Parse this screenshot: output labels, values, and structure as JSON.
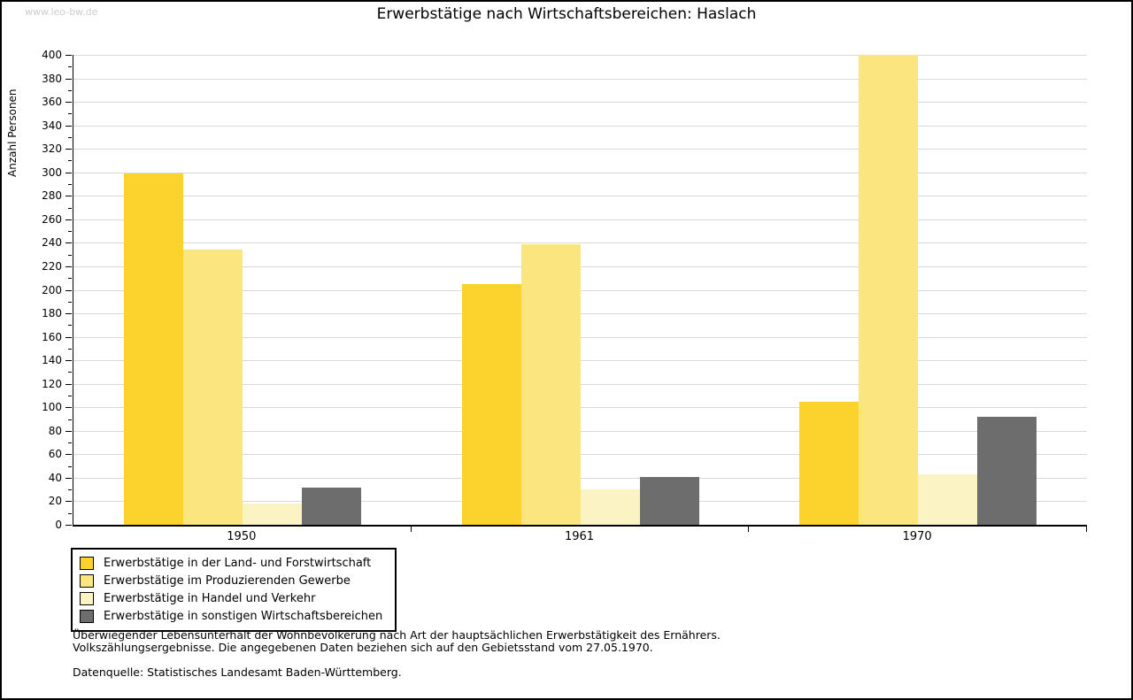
{
  "watermark": "www.leo-bw.de",
  "title": "Erwerbstätige nach Wirtschaftsbereichen: Haslach",
  "chart_data": {
    "type": "bar",
    "title": "Erwerbstätige nach Wirtschaftsbereichen: Haslach",
    "categories": [
      "1950",
      "1961",
      "1970"
    ],
    "series": [
      {
        "name": "Erwerbstätige in der Land- und Forstwirtschaft",
        "color": "#fcd32d",
        "values": [
          299,
          205,
          105
        ]
      },
      {
        "name": "Erwerbstätige im Produzierenden Gewerbe",
        "color": "#fbe57e",
        "values": [
          234,
          239,
          400
        ]
      },
      {
        "name": "Erwerbstätige in Handel und Verkehr",
        "color": "#fbf3c3",
        "values": [
          18,
          30,
          43
        ]
      },
      {
        "name": "Erwerbstätige in sonstigen Wirtschaftsbereichen",
        "color": "#6d6d6d",
        "values": [
          32,
          41,
          92
        ]
      }
    ],
    "xlabel": "",
    "ylabel": "Anzahl Personen",
    "ylim": [
      0,
      400
    ],
    "y_major_step": 20,
    "y_minor_step": 10,
    "grid": true,
    "grid_color": "#d9d9d9",
    "axis_color": "#000000",
    "legend_position": "bottom-left"
  },
  "footnotes": {
    "line1": "Überwiegender Lebensunterhalt der Wohnbevölkerung nach Art der hauptsächlichen Erwerbstätigkeit des Ernährers.",
    "line2": "Volkszählungsergebnisse. Die angegebenen Daten beziehen sich auf den Gebietsstand vom 27.05.1970.",
    "source": "Datenquelle: Statistisches Landesamt Baden-Württemberg."
  }
}
